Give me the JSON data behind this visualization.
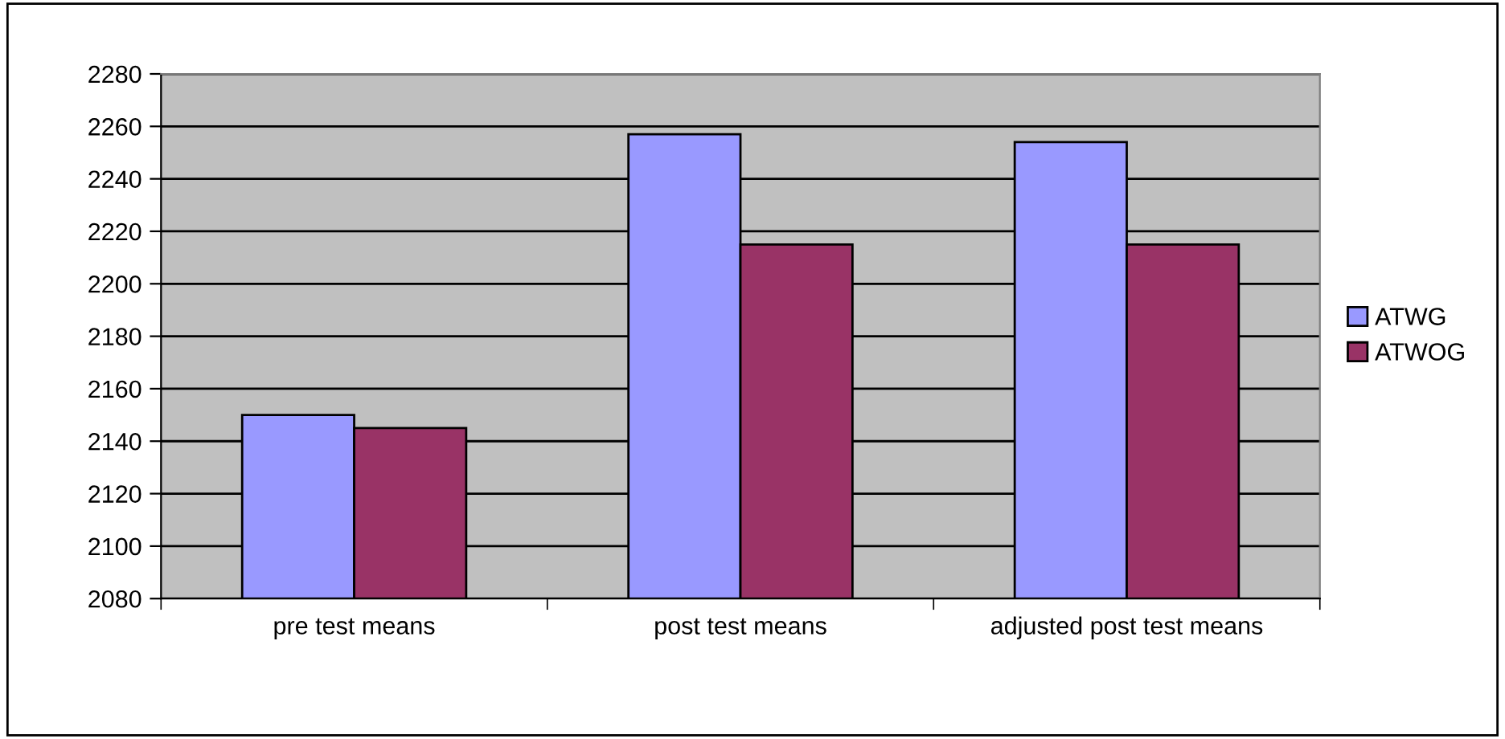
{
  "chart_data": {
    "type": "bar",
    "categories": [
      "pre test means",
      "post test means",
      "adjusted post test means"
    ],
    "series": [
      {
        "name": "ATWG",
        "color": "#9999ff",
        "values": [
          2150,
          2257,
          2254
        ]
      },
      {
        "name": "ATWOG",
        "color": "#993366",
        "values": [
          2145,
          2215,
          2215
        ]
      }
    ],
    "ylim": [
      2080,
      2280
    ],
    "yticks": [
      2080,
      2100,
      2120,
      2140,
      2160,
      2180,
      2200,
      2220,
      2240,
      2260,
      2280
    ],
    "grid": "y",
    "legend": "right"
  }
}
